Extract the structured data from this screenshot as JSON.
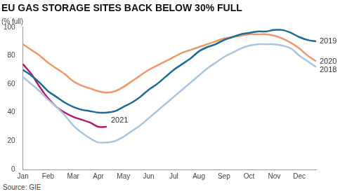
{
  "chart_data": {
    "type": "line",
    "title": "EU GAS STORAGE SITES BACK BELOW 30% FULL",
    "subtitle": "(% full)",
    "source": "Source: GIE",
    "categories": [
      "Jan",
      null,
      null,
      "Feb",
      null,
      null,
      "Mar",
      null,
      null,
      "Apr",
      null,
      null,
      "May",
      null,
      null,
      "Jun",
      null,
      null,
      "Jul",
      null,
      null,
      "Aug",
      null,
      null,
      "Sep",
      null,
      null,
      "Oct",
      null,
      null,
      "Nov",
      null,
      null,
      "Dec",
      null,
      null
    ],
    "series": [
      {
        "name": "2019",
        "color": "#1a6e96",
        "values": [
          70,
          66,
          61,
          55,
          51,
          47,
          44,
          42,
          41,
          40,
          40,
          41,
          44,
          47,
          51,
          56,
          60,
          65,
          70,
          74,
          78,
          83,
          86,
          88,
          91,
          93,
          95,
          96,
          97,
          97,
          98,
          98,
          96,
          93,
          91,
          90
        ]
      },
      {
        "name": "2020",
        "color": "#f0976a",
        "values": [
          88,
          84,
          80,
          75,
          71,
          67,
          62,
          59,
          57,
          55,
          54,
          55,
          58,
          62,
          66,
          70,
          73,
          76,
          79,
          82,
          84,
          86,
          88,
          90,
          92,
          93,
          94,
          95,
          95,
          95,
          94,
          92,
          89,
          85,
          80,
          76
        ]
      },
      {
        "name": "2018",
        "color": "#a9c4dd",
        "values": [
          65,
          60,
          55,
          49,
          44,
          38,
          31,
          26,
          22,
          19,
          19,
          20,
          23,
          27,
          31,
          36,
          41,
          46,
          51,
          56,
          61,
          66,
          71,
          75,
          79,
          82,
          85,
          87,
          88,
          88,
          88,
          87,
          85,
          80,
          76,
          72
        ]
      },
      {
        "name": "2021",
        "color": "#b3196b",
        "values": [
          74,
          67,
          58,
          50,
          44,
          40,
          37,
          35,
          33,
          30,
          30,
          null,
          null,
          null,
          null,
          null,
          null,
          null,
          null,
          null,
          null,
          null,
          null,
          null,
          null,
          null,
          null,
          null,
          null,
          null,
          null,
          null,
          null,
          null,
          null,
          null
        ]
      }
    ],
    "ylim": [
      0,
      100
    ],
    "yticks": [
      0,
      20,
      40,
      60,
      80,
      100
    ],
    "grid": false
  }
}
